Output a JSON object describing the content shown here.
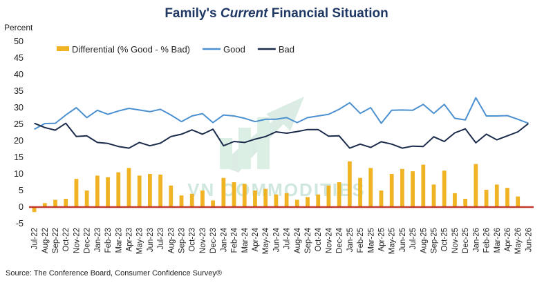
{
  "chart_data": {
    "type": "bar+line",
    "title_part1": "Family's ",
    "title_italic": "Current",
    "title_part2": " Financial Situation",
    "ylabel": "Percent",
    "ylim": [
      -5,
      50
    ],
    "yticks": [
      -5,
      0,
      5,
      10,
      15,
      20,
      25,
      30,
      35,
      40,
      45,
      50
    ],
    "legend": {
      "placement": "top-left",
      "items": [
        {
          "label": "Differential (% Good - % Bad)",
          "color": "#f0b323",
          "kind": "bar"
        },
        {
          "label": "Good",
          "color": "#4a90d0",
          "kind": "line"
        },
        {
          "label": "Bad",
          "color": "#1a2a4a",
          "kind": "line"
        }
      ]
    },
    "categories": [
      "Jul-22",
      "Aug-22",
      "Sep-22",
      "Oct-22",
      "Nov-22",
      "Dec-22",
      "Jan-23",
      "Feb-23",
      "Mar-23",
      "Apr-23",
      "May-23",
      "Jun-23",
      "Jul-23",
      "Aug-23",
      "Sep-23",
      "Oct-23",
      "Nov-23",
      "Dec-23",
      "Jan-24",
      "Feb-24",
      "Mar-24",
      "Apr-24",
      "May-24",
      "Jun-24",
      "Jul-24",
      "Aug-24",
      "Sep-24",
      "Oct-24",
      "Nov-24",
      "Dec-24",
      "Jan-25",
      "Feb-25",
      "Mar-25",
      "Apr-25",
      "May-25",
      "Jun-25",
      "Jul-25",
      "Aug-25",
      "Sep-25",
      "Oct-25",
      "Nov-25",
      "Dec-25",
      "Jan-26",
      "Feb-26",
      "Mar-26",
      "Apr-26",
      "May-26",
      "Jun-26"
    ],
    "tick_labels": [
      "Jul-22",
      "Aug-22",
      "Sep-22",
      "Oct-22",
      "Nov-22",
      "Dec-22",
      "Jan-23",
      "Feb-23",
      "Mar-23",
      "Apr-23",
      "May-23",
      "Jun-23",
      "Jul-23",
      "Aug-23",
      "Sep-23",
      "Oct-23",
      "Nov-23",
      "Dec-23",
      "Jan-24",
      "Feb-24",
      "Mar-24",
      "Apr-24",
      "May-24",
      "Jun-24",
      "Jul-24",
      "Aug-24",
      "Sep-24",
      "Oct-24",
      "Nov-24",
      "Dec-24",
      "Jan-25",
      "Feb-25",
      "Mar-25",
      "Apr-25",
      "May-25",
      "Jun-25",
      "Jul-25",
      "Aug-25",
      "Sep-25",
      "Oct-25",
      "Nov-25",
      "Dec-25",
      "Jan-26",
      "Feb-26",
      "Mar-26",
      "Apr-26",
      "May-26",
      "Jun-26"
    ],
    "series": [
      {
        "name": "Differential (% Good - % Bad)",
        "values": [
          -1.5,
          1.2,
          2.2,
          2.5,
          8.5,
          5.0,
          9.5,
          9.0,
          10.5,
          11.8,
          9.5,
          10.0,
          9.8,
          6.5,
          3.5,
          4.0,
          5.0,
          2.0,
          8.8,
          7.5,
          7.0,
          5.0,
          5.5,
          3.8,
          4.2,
          2.2,
          3.0,
          3.8,
          6.5,
          7.5,
          13.8,
          8.8,
          11.8,
          5.0,
          10.0,
          11.5,
          10.8,
          12.8,
          6.8,
          11.0,
          4.2,
          2.5,
          13.0,
          5.2,
          6.8,
          5.8,
          3.2,
          0.2
        ]
      },
      {
        "name": "Good",
        "values": [
          23.5,
          25.2,
          25.3,
          27.8,
          30.0,
          27.0,
          29.2,
          28.0,
          29.0,
          29.8,
          29.3,
          28.8,
          29.5,
          27.8,
          25.8,
          27.5,
          28.2,
          25.5,
          27.8,
          27.5,
          26.8,
          25.8,
          26.5,
          26.5,
          27.0,
          25.5,
          27.0,
          27.5,
          28.0,
          29.5,
          31.5,
          28.3,
          30.0,
          25.3,
          29.2,
          29.3,
          29.2,
          31.0,
          28.3,
          31.0,
          26.8,
          26.3,
          33.0,
          27.5,
          27.5,
          27.6,
          26.5,
          25.3
        ]
      },
      {
        "name": "Bad",
        "values": [
          25.3,
          24.0,
          23.2,
          25.3,
          21.3,
          21.5,
          19.5,
          19.2,
          18.3,
          17.8,
          19.5,
          18.5,
          19.3,
          21.3,
          22.0,
          23.3,
          22.0,
          23.5,
          18.5,
          19.8,
          19.5,
          20.5,
          21.3,
          22.7,
          22.3,
          22.8,
          23.4,
          23.4,
          21.4,
          21.5,
          17.8,
          19.0,
          18.0,
          19.7,
          19.0,
          17.8,
          18.4,
          18.3,
          21.2,
          19.8,
          22.4,
          23.6,
          19.4,
          22.0,
          20.3,
          21.5,
          22.7,
          25.2
        ]
      }
    ],
    "zero_line_color": "#c0392b",
    "grid": false
  },
  "source": "Source: The Conference Board, Consumer Confidence Survey®",
  "watermark": "VN COMMODITIES"
}
